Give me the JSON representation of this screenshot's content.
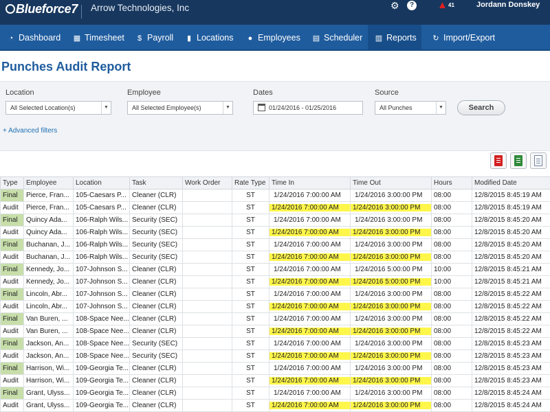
{
  "header": {
    "logo": "Blueforce7",
    "company": "Arrow Technologies, Inc",
    "alert_count": "41",
    "user": "Jordann Donskey",
    "icons": [
      "gear-icon",
      "help-icon",
      "alert-icon"
    ]
  },
  "nav": {
    "items": [
      {
        "label": "Dashboard",
        "icon": "dashboard-icon"
      },
      {
        "label": "Timesheet",
        "icon": "timesheet-icon"
      },
      {
        "label": "Payroll",
        "icon": "dollar-icon"
      },
      {
        "label": "Locations",
        "icon": "building-icon"
      },
      {
        "label": "Employees",
        "icon": "people-icon"
      },
      {
        "label": "Scheduler",
        "icon": "calendar-icon"
      },
      {
        "label": "Reports",
        "icon": "chart-icon"
      },
      {
        "label": "Import/Export",
        "icon": "sync-icon"
      }
    ],
    "active": "Reports"
  },
  "page": {
    "title": "Punches Audit Report"
  },
  "filters": {
    "location_label": "Location",
    "location_value": "All Selected Location(s)",
    "employee_label": "Employee",
    "employee_value": "All Selected Employee(s)",
    "dates_label": "Dates",
    "dates_value": "01/24/2016 - 01/25/2016",
    "source_label": "Source",
    "source_value": "All Punches",
    "search_label": "Search",
    "advanced_label": "+ Advanced filters"
  },
  "exports": [
    "pdf-export-icon",
    "excel-export-icon",
    "csv-export-icon"
  ],
  "table": {
    "columns": [
      "Type",
      "Employee",
      "Location",
      "Task",
      "Work Order",
      "Rate Type",
      "Time In",
      "Time Out",
      "Hours",
      "Modified Date"
    ],
    "rows": [
      [
        "Final",
        "Pierce, Fran...",
        "105-Caesars P...",
        "Cleaner (CLR)",
        "",
        "ST",
        "1/24/2016 7:00:00 AM",
        "1/24/2016 3:00:00 PM",
        "08:00",
        "12/8/2015 8:45:19 AM"
      ],
      [
        "Audit",
        "Pierce, Fran...",
        "105-Caesars P...",
        "Cleaner (CLR)",
        "",
        "ST",
        "1/24/2016 7:00:00 AM",
        "1/24/2016 3:00:00 PM",
        "08:00",
        "12/8/2015 8:45:19 AM"
      ],
      [
        "Final",
        "Quincy Ada...",
        "106-Ralph Wils...",
        "Security (SEC)",
        "",
        "ST",
        "1/24/2016 7:00:00 AM",
        "1/24/2016 3:00:00 PM",
        "08:00",
        "12/8/2015 8:45:20 AM"
      ],
      [
        "Audit",
        "Quincy Ada...",
        "106-Ralph Wils...",
        "Security (SEC)",
        "",
        "ST",
        "1/24/2016 7:00:00 AM",
        "1/24/2016 3:00:00 PM",
        "08:00",
        "12/8/2015 8:45:20 AM"
      ],
      [
        "Final",
        "Buchanan, J...",
        "106-Ralph Wils...",
        "Security (SEC)",
        "",
        "ST",
        "1/24/2016 7:00:00 AM",
        "1/24/2016 3:00:00 PM",
        "08:00",
        "12/8/2015 8:45:20 AM"
      ],
      [
        "Audit",
        "Buchanan, J...",
        "106-Ralph Wils...",
        "Security (SEC)",
        "",
        "ST",
        "1/24/2016 7:00:00 AM",
        "1/24/2016 3:00:00 PM",
        "08:00",
        "12/8/2015 8:45:20 AM"
      ],
      [
        "Final",
        "Kennedy, Jo...",
        "107-Johnson S...",
        "Cleaner (CLR)",
        "",
        "ST",
        "1/24/2016 7:00:00 AM",
        "1/24/2016 5:00:00 PM",
        "10:00",
        "12/8/2015 8:45:21 AM"
      ],
      [
        "Audit",
        "Kennedy, Jo...",
        "107-Johnson S...",
        "Cleaner (CLR)",
        "",
        "ST",
        "1/24/2016 7:00:00 AM",
        "1/24/2016 5:00:00 PM",
        "10:00",
        "12/8/2015 8:45:21 AM"
      ],
      [
        "Final",
        "Lincoln, Abr...",
        "107-Johnson S...",
        "Cleaner (CLR)",
        "",
        "ST",
        "1/24/2016 7:00:00 AM",
        "1/24/2016 3:00:00 PM",
        "08:00",
        "12/8/2015 8:45:22 AM"
      ],
      [
        "Audit",
        "Lincoln, Abr...",
        "107-Johnson S...",
        "Cleaner (CLR)",
        "",
        "ST",
        "1/24/2016 7:00:00 AM",
        "1/24/2016 3:00:00 PM",
        "08:00",
        "12/8/2015 8:45:22 AM"
      ],
      [
        "Final",
        "Van Buren, ...",
        "108-Space Nee...",
        "Cleaner (CLR)",
        "",
        "ST",
        "1/24/2016 7:00:00 AM",
        "1/24/2016 3:00:00 PM",
        "08:00",
        "12/8/2015 8:45:22 AM"
      ],
      [
        "Audit",
        "Van Buren, ...",
        "108-Space Nee...",
        "Cleaner (CLR)",
        "",
        "ST",
        "1/24/2016 7:00:00 AM",
        "1/24/2016 3:00:00 PM",
        "08:00",
        "12/8/2015 8:45:22 AM"
      ],
      [
        "Final",
        "Jackson, An...",
        "108-Space Nee...",
        "Security (SEC)",
        "",
        "ST",
        "1/24/2016 7:00:00 AM",
        "1/24/2016 3:00:00 PM",
        "08:00",
        "12/8/2015 8:45:23 AM"
      ],
      [
        "Audit",
        "Jackson, An...",
        "108-Space Nee...",
        "Security (SEC)",
        "",
        "ST",
        "1/24/2016 7:00:00 AM",
        "1/24/2016 3:00:00 PM",
        "08:00",
        "12/8/2015 8:45:23 AM"
      ],
      [
        "Final",
        "Harrison, Wi...",
        "109-Georgia Te...",
        "Cleaner (CLR)",
        "",
        "ST",
        "1/24/2016 7:00:00 AM",
        "1/24/2016 3:00:00 PM",
        "08:00",
        "12/8/2015 8:45:23 AM"
      ],
      [
        "Audit",
        "Harrison, Wi...",
        "109-Georgia Te...",
        "Cleaner (CLR)",
        "",
        "ST",
        "1/24/2016 7:00:00 AM",
        "1/24/2016 3:00:00 PM",
        "08:00",
        "12/8/2015 8:45:23 AM"
      ],
      [
        "Final",
        "Grant, Ulyss...",
        "109-Georgia Te...",
        "Cleaner (CLR)",
        "",
        "ST",
        "1/24/2016 7:00:00 AM",
        "1/24/2016 3:00:00 PM",
        "08:00",
        "12/8/2015 8:45:24 AM"
      ],
      [
        "Audit",
        "Grant, Ulyss...",
        "109-Georgia Te...",
        "Cleaner (CLR)",
        "",
        "ST",
        "1/24/2016 7:00:00 AM",
        "1/24/2016 3:00:00 PM",
        "08:00",
        "12/8/2015 8:45:24 AM"
      ]
    ],
    "highlight_color": "#fff64a",
    "final_color": "#c7deaa"
  },
  "colors": {
    "topbar": "#17375e",
    "navbar": "#1f5c9e",
    "title": "#1f5c9e"
  }
}
